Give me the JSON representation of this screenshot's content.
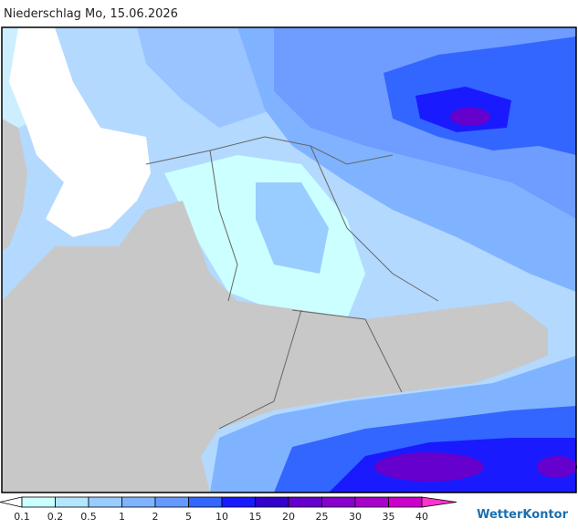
{
  "header": {
    "title": "Niederschlag Mo, 15.06.2026"
  },
  "legend": {
    "levels": [
      0.1,
      0.2,
      0.5,
      1,
      2,
      5,
      10,
      15,
      20,
      25,
      30,
      35,
      40
    ],
    "colors": [
      "#ffffff",
      "#ccffff",
      "#b3e6ff",
      "#99ccff",
      "#80b3ff",
      "#6699ff",
      "#3366ff",
      "#1a1aff",
      "#3300cc",
      "#6600cc",
      "#8800cc",
      "#aa00cc",
      "#cc00cc",
      "#e600e6",
      "#ff33cc"
    ]
  },
  "brand": "WetterKontor"
}
